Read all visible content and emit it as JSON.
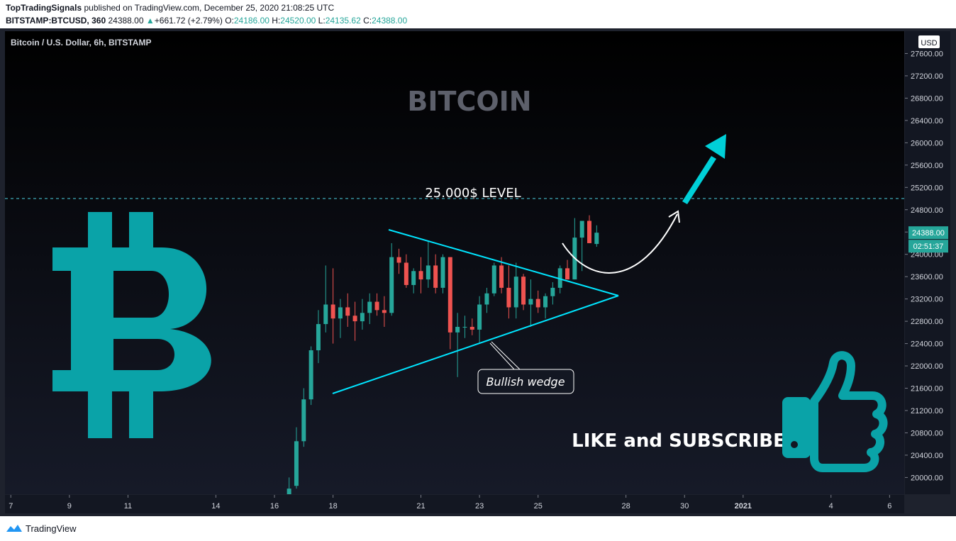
{
  "header": {
    "author": "TopTradingSignals",
    "published_text": "published on TradingView.com, December 25, 2020 21:08:25 UTC",
    "symbol": "BITSTAMP:BTCUSD, 360",
    "last_price": "24388.00",
    "change_arrow": "▲",
    "change": "+661.72 (+2.79%)",
    "o_label": "O:",
    "o_value": "24186.00",
    "h_label": "H:",
    "h_value": "24520.00",
    "l_label": "L:",
    "l_value": "24135.62",
    "c_label": "C:",
    "c_value": "24388.00"
  },
  "chart_data": {
    "type": "candlestick",
    "title": "Bitcoin / U.S. Dollar, 6h, BITSTAMP",
    "currency": "USD",
    "y_range": [
      19700,
      28000
    ],
    "x_day_range": [
      6.8,
      37.5
    ],
    "x_ticks": [
      {
        "day": 7,
        "label": "7"
      },
      {
        "day": 9,
        "label": "9"
      },
      {
        "day": 11,
        "label": "11"
      },
      {
        "day": 14,
        "label": "14"
      },
      {
        "day": 16,
        "label": "16"
      },
      {
        "day": 18,
        "label": "18"
      },
      {
        "day": 21,
        "label": "21"
      },
      {
        "day": 23,
        "label": "23"
      },
      {
        "day": 25,
        "label": "25"
      },
      {
        "day": 28,
        "label": "28"
      },
      {
        "day": 30,
        "label": "30"
      },
      {
        "day": 32,
        "label": "2021"
      },
      {
        "day": 35,
        "label": "4"
      },
      {
        "day": 37,
        "label": "6"
      }
    ],
    "y_ticks": [
      "28000.00",
      "27600.00",
      "27200.00",
      "26800.00",
      "26400.00",
      "26000.00",
      "25600.00",
      "25200.00",
      "24800.00",
      "24400.00",
      "24000.00",
      "23600.00",
      "23200.00",
      "22800.00",
      "22400.00",
      "22000.00",
      "21600.00",
      "21200.00",
      "20800.00",
      "20400.00",
      "20000.00"
    ],
    "last_price_label": "24388.00",
    "countdown_label": "02:51:37",
    "level_line": {
      "price": 25000,
      "label": "25.000$ LEVEL"
    },
    "colors": {
      "up": "#26a69a",
      "down": "#ef5350",
      "accent": "#00c8d2",
      "bg": "#131722"
    },
    "candles": [
      {
        "o": 19700,
        "h": 20000,
        "l": 19600,
        "c": 19800
      },
      {
        "o": 19850,
        "h": 20900,
        "l": 19800,
        "c": 20650
      },
      {
        "o": 20650,
        "h": 21600,
        "l": 20550,
        "c": 21400
      },
      {
        "o": 21400,
        "h": 22350,
        "l": 21300,
        "c": 22280
      },
      {
        "o": 22280,
        "h": 23000,
        "l": 22050,
        "c": 22750
      },
      {
        "o": 22750,
        "h": 23800,
        "l": 22600,
        "c": 23100
      },
      {
        "o": 23100,
        "h": 23750,
        "l": 22400,
        "c": 22850
      },
      {
        "o": 22850,
        "h": 23200,
        "l": 22500,
        "c": 23050
      },
      {
        "o": 23050,
        "h": 23300,
        "l": 22700,
        "c": 22900
      },
      {
        "o": 22900,
        "h": 23150,
        "l": 22450,
        "c": 22800
      },
      {
        "o": 22800,
        "h": 23200,
        "l": 22650,
        "c": 22950
      },
      {
        "o": 22950,
        "h": 23300,
        "l": 22750,
        "c": 23150
      },
      {
        "o": 23150,
        "h": 23300,
        "l": 22900,
        "c": 23000
      },
      {
        "o": 23000,
        "h": 23250,
        "l": 22700,
        "c": 22950
      },
      {
        "o": 22950,
        "h": 24200,
        "l": 22900,
        "c": 23950
      },
      {
        "o": 23950,
        "h": 24100,
        "l": 23650,
        "c": 23850
      },
      {
        "o": 23850,
        "h": 24000,
        "l": 23400,
        "c": 23450
      },
      {
        "o": 23450,
        "h": 23750,
        "l": 23300,
        "c": 23700
      },
      {
        "o": 23700,
        "h": 23950,
        "l": 23300,
        "c": 23550
      },
      {
        "o": 23550,
        "h": 24250,
        "l": 23400,
        "c": 23800
      },
      {
        "o": 23800,
        "h": 24000,
        "l": 23300,
        "c": 23400
      },
      {
        "o": 23400,
        "h": 24000,
        "l": 23300,
        "c": 23950
      },
      {
        "o": 23950,
        "h": 23950,
        "l": 22300,
        "c": 22600
      },
      {
        "o": 22600,
        "h": 22950,
        "l": 21800,
        "c": 22700
      },
      {
        "o": 22700,
        "h": 22900,
        "l": 22500,
        "c": 22700
      },
      {
        "o": 22700,
        "h": 22850,
        "l": 22550,
        "c": 22650
      },
      {
        "o": 22650,
        "h": 23250,
        "l": 22400,
        "c": 23100
      },
      {
        "o": 23100,
        "h": 23400,
        "l": 22950,
        "c": 23300
      },
      {
        "o": 23300,
        "h": 23850,
        "l": 23250,
        "c": 23800
      },
      {
        "o": 23800,
        "h": 23950,
        "l": 23300,
        "c": 23400
      },
      {
        "o": 23400,
        "h": 23800,
        "l": 22850,
        "c": 23050
      },
      {
        "o": 23050,
        "h": 23850,
        "l": 22850,
        "c": 23600
      },
      {
        "o": 23600,
        "h": 23650,
        "l": 23000,
        "c": 23100
      },
      {
        "o": 23100,
        "h": 23550,
        "l": 22700,
        "c": 23200
      },
      {
        "o": 23200,
        "h": 23350,
        "l": 22950,
        "c": 23050
      },
      {
        "o": 23050,
        "h": 23300,
        "l": 22850,
        "c": 23250
      },
      {
        "o": 23250,
        "h": 23500,
        "l": 23100,
        "c": 23400
      },
      {
        "o": 23400,
        "h": 23800,
        "l": 23300,
        "c": 23750
      },
      {
        "o": 23750,
        "h": 23900,
        "l": 23550,
        "c": 23550
      },
      {
        "o": 23550,
        "h": 24650,
        "l": 23550,
        "c": 24300
      },
      {
        "o": 24300,
        "h": 24600,
        "l": 23700,
        "c": 24600
      },
      {
        "o": 24600,
        "h": 24700,
        "l": 24200,
        "c": 24200
      },
      {
        "o": 24186,
        "h": 24520,
        "l": 24135.62,
        "c": 24388
      }
    ],
    "annotations": {
      "watermark": "BITCOIN",
      "wedge_label": "Bullish  wedge",
      "cta": "LIKE and SUBSCRIBE"
    }
  },
  "footer": {
    "brand": "TradingView"
  }
}
